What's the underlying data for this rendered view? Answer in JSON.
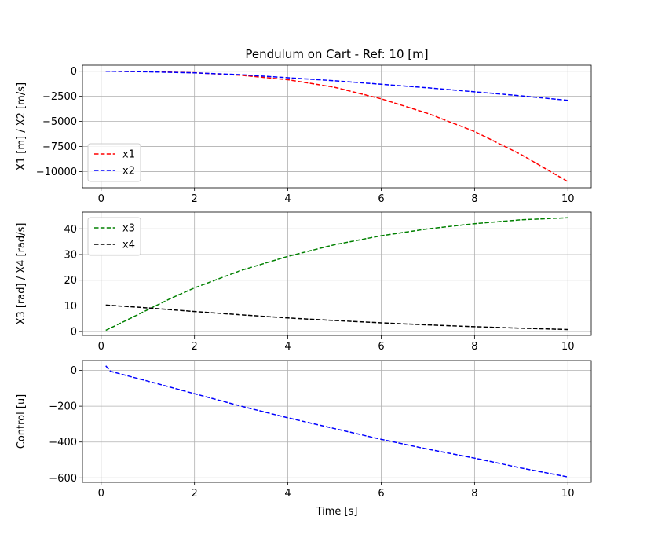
{
  "chart_data": [
    {
      "type": "line",
      "title": "Pendulum on Cart - Ref: 10 [m]",
      "xlabel": "",
      "ylabel": "X1 [m] / X2 [m/s]",
      "xlim": [
        -0.4,
        10.5
      ],
      "ylim": [
        -11600,
        600
      ],
      "xticks": [
        0,
        2,
        4,
        6,
        8,
        10
      ],
      "xtick_labels": [
        "0",
        "2",
        "4",
        "6",
        "8",
        "10"
      ],
      "yticks": [
        0,
        -2500,
        -5000,
        -7500,
        -10000
      ],
      "ytick_labels": [
        "0",
        "−2500",
        "−5000",
        "−7500",
        "−10000"
      ],
      "grid": true,
      "legend_position": "lower-left",
      "series": [
        {
          "name": "x1",
          "color": "#ff0000",
          "x": [
            0.1,
            1,
            2,
            3,
            4,
            5,
            6,
            7,
            8,
            9,
            10
          ],
          "y": [
            0,
            -30,
            -150,
            -400,
            -850,
            -1600,
            -2750,
            -4200,
            -6000,
            -8300,
            -11000
          ]
        },
        {
          "name": "x2",
          "color": "#0000ff",
          "x": [
            0.1,
            1,
            2,
            3,
            4,
            5,
            6,
            7,
            8,
            9,
            10
          ],
          "y": [
            0,
            -60,
            -170,
            -350,
            -650,
            -950,
            -1300,
            -1650,
            -2050,
            -2450,
            -2900
          ]
        }
      ]
    },
    {
      "type": "line",
      "title": "",
      "xlabel": "",
      "ylabel": "X3 [rad] / X4 [rad/s]",
      "xlim": [
        -0.4,
        10.5
      ],
      "ylim": [
        -1.5,
        46.5
      ],
      "xticks": [
        0,
        2,
        4,
        6,
        8,
        10
      ],
      "xtick_labels": [
        "0",
        "2",
        "4",
        "6",
        "8",
        "10"
      ],
      "yticks": [
        0,
        10,
        20,
        30,
        40
      ],
      "ytick_labels": [
        "0",
        "10",
        "20",
        "30",
        "40"
      ],
      "grid": true,
      "legend_position": "upper-left",
      "series": [
        {
          "name": "x3",
          "color": "#008000",
          "x": [
            0.1,
            0.5,
            1,
            1.5,
            2,
            3,
            4,
            5,
            6,
            7,
            8,
            9,
            10
          ],
          "y": [
            0.5,
            4,
            8.5,
            13,
            17,
            23.8,
            29.3,
            33.8,
            37.3,
            40,
            42,
            43.5,
            44.3
          ]
        },
        {
          "name": "x4",
          "color": "#000000",
          "x": [
            0.1,
            1,
            2,
            3,
            4,
            5,
            6,
            7,
            8,
            9,
            10
          ],
          "y": [
            10.3,
            9.2,
            7.8,
            6.5,
            5.3,
            4.3,
            3.4,
            2.6,
            1.9,
            1.3,
            0.8
          ]
        }
      ]
    },
    {
      "type": "line",
      "title": "",
      "xlabel": "Time [s]",
      "ylabel": "Control [u]",
      "xlim": [
        -0.4,
        10.5
      ],
      "ylim": [
        -625,
        55
      ],
      "xticks": [
        0,
        2,
        4,
        6,
        8,
        10
      ],
      "xtick_labels": [
        "0",
        "2",
        "4",
        "6",
        "8",
        "10"
      ],
      "yticks": [
        0,
        -200,
        -400,
        -600
      ],
      "ytick_labels": [
        "0",
        "−200",
        "−400",
        "−600"
      ],
      "grid": true,
      "legend_position": "",
      "series": [
        {
          "name": "",
          "color": "#0000ff",
          "x": [
            0.1,
            0.2,
            1,
            2,
            3,
            4,
            5,
            6,
            7,
            8,
            9,
            10
          ],
          "y": [
            25,
            -5,
            -60,
            -130,
            -200,
            -265,
            -325,
            -385,
            -440,
            -490,
            -545,
            -595
          ]
        }
      ]
    }
  ]
}
